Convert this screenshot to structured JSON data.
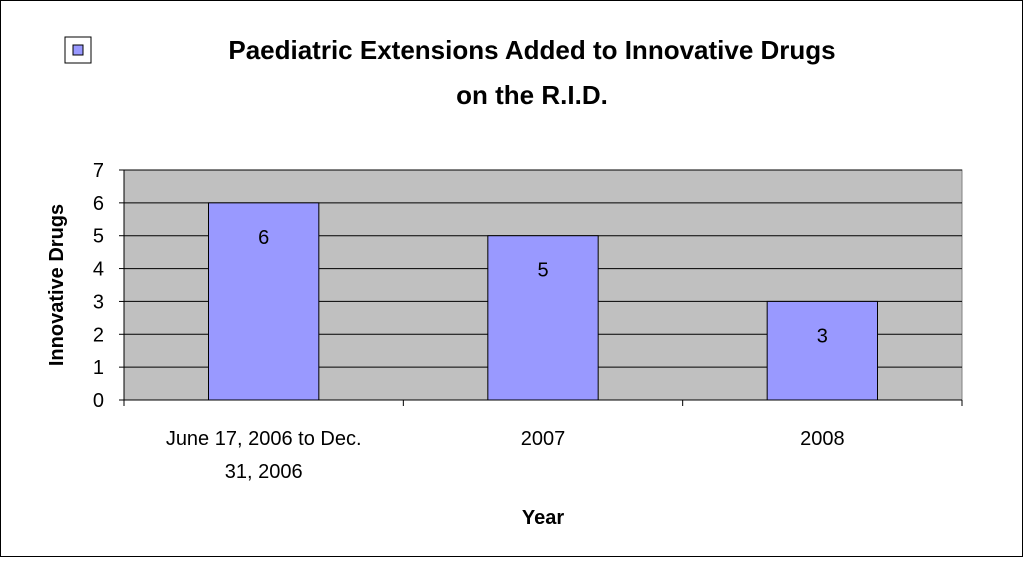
{
  "chart_data": {
    "type": "bar",
    "title_line1": "Paediatric Extensions Added to Innovative Drugs",
    "title_line2": "on the R.I.D.",
    "xlabel": "Year",
    "ylabel": "Innovative Drugs",
    "categories": [
      {
        "line1": "June 17, 2006 to Dec.",
        "line2": "31, 2006"
      },
      {
        "line1": "2007",
        "line2": ""
      },
      {
        "line1": "2008",
        "line2": ""
      }
    ],
    "values": [
      6,
      5,
      3
    ],
    "data_labels": [
      "6",
      "5",
      "3"
    ],
    "ylim": [
      0,
      7
    ],
    "yticks": [
      "0",
      "1",
      "2",
      "3",
      "4",
      "5",
      "6",
      "7"
    ],
    "grid": true,
    "legend": "top-left",
    "colors": {
      "bar": "#9999ff",
      "plot_background": "#c0c0c0",
      "grid": "#000000",
      "frame": "#000000"
    }
  }
}
